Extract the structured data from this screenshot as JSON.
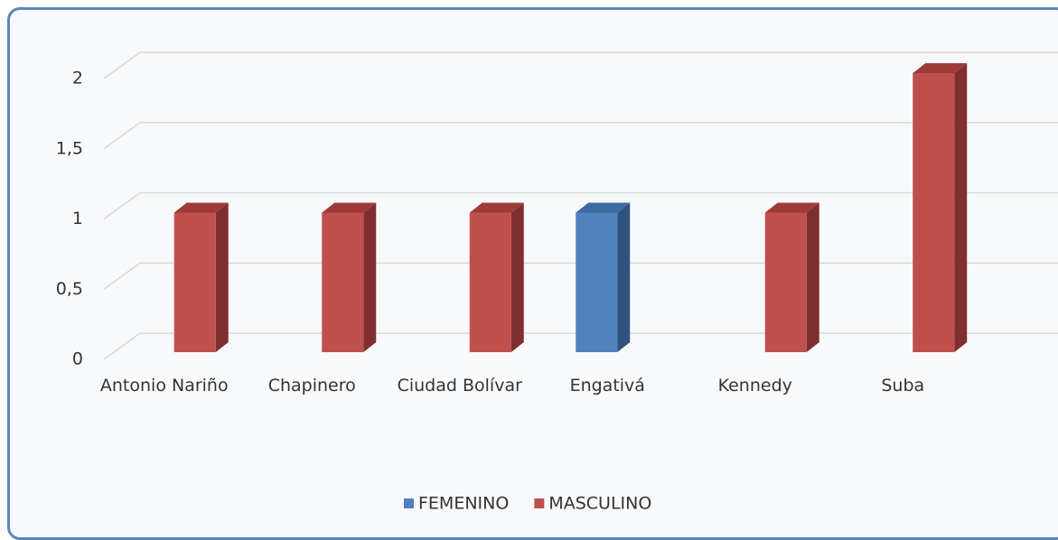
{
  "chart_data": {
    "type": "bar3d",
    "categories": [
      "Antonio Nariño",
      "Chapinero",
      "Ciudad Bolívar",
      "Engativá",
      "Kennedy",
      "Suba"
    ],
    "series": [
      {
        "name": "FEMENINO",
        "color": "#4f81bd",
        "side": "#2f527e",
        "top": "#3d6aa0",
        "values": [
          null,
          null,
          null,
          1,
          null,
          null
        ]
      },
      {
        "name": "MASCULINO",
        "color": "#c0504d",
        "side": "#7f2f2e",
        "top": "#9e3b39",
        "values": [
          1,
          1,
          1,
          null,
          1,
          2
        ]
      }
    ],
    "ylim": [
      0,
      2
    ],
    "yticks": [
      0,
      {
        "value": 0.5,
        "label": "0,5"
      },
      1,
      {
        "value": 1.5,
        "label": "1,5"
      },
      2
    ],
    "grid": true,
    "legend": "bottom"
  }
}
